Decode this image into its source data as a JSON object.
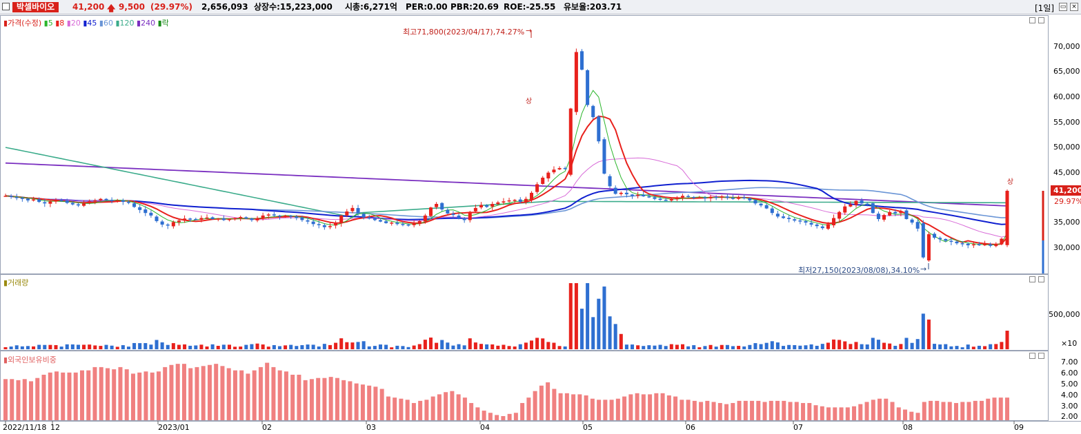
{
  "header": {
    "name": "박셀바이오",
    "price": "41,200",
    "change": "9,500",
    "change_pct": "(29.97%)",
    "volume": "2,656,093",
    "shares": "상장수:15,223,000",
    "mcap": "시총:6,271억",
    "per": "PER:0.00",
    "pbr": "PBR:20.69",
    "roe": "ROE:-25.55",
    "reserve": "유보율:203.71",
    "period": "[1일]"
  },
  "price_panel": {
    "legend_main": "가격(수정)",
    "legend_ma": [
      "5",
      "8",
      "20",
      "45",
      "60",
      "120",
      "240",
      "락"
    ],
    "high_label": "최고71,800(2023/04/17),74.27%",
    "low_label": "최저27,150(2023/08/08),34.10%",
    "up_mark": "상",
    "last_price": "41,200",
    "last_pct": "29.97%",
    "yticks": [
      "70,000",
      "65,000",
      "60,000",
      "55,000",
      "50,000",
      "45,000",
      "40,000",
      "35,000",
      "30,000"
    ]
  },
  "volume_panel": {
    "legend": "거래량",
    "yticks": [
      "500,000",
      "×10"
    ]
  },
  "foreign_panel": {
    "legend": "외국인보유비중",
    "yticks": [
      "7.00",
      "6.00",
      "5.00",
      "4.00",
      "3.00",
      "2.00"
    ]
  },
  "xaxis": {
    "labels": [
      "2022/11/18",
      "12",
      "2023/01",
      "02",
      "03",
      "04",
      "05",
      "06",
      "07",
      "08",
      "09"
    ]
  },
  "colors": {
    "up": "#e8211c",
    "down": "#2e6fd1",
    "ma5": "#2bb52b",
    "ma20": "#d86bd8",
    "ma45": "#1020d0",
    "ma60": "#6a95d6",
    "ma120": "#3aab8a",
    "ma240": "#7a2fc0",
    "foreign_bar": "#f08080"
  },
  "chart_data": {
    "type": "candlestick",
    "price_range": [
      26000,
      73000
    ],
    "start_date": "2022/11/18",
    "notable_points": [
      {
        "label": "high",
        "date": "2023/04/17",
        "value": 71800
      },
      {
        "label": "low",
        "date": "2023/08/08",
        "value": 27150
      },
      {
        "label": "last",
        "value": 41200
      }
    ],
    "closes": [
      40200,
      40000,
      39800,
      39600,
      39300,
      39500,
      39000,
      38700,
      39100,
      39400,
      39200,
      38800,
      38500,
      38300,
      38700,
      39100,
      39300,
      39600,
      39400,
      39200,
      39300,
      39000,
      38800,
      38000,
      37400,
      36800,
      36300,
      35200,
      34500,
      34300,
      35000,
      35300,
      35700,
      35600,
      35500,
      35800,
      35900,
      35600,
      35700,
      35400,
      35600,
      35800,
      36000,
      35700,
      35400,
      35800,
      36300,
      36500,
      36300,
      36100,
      36300,
      36100,
      35800,
      35400,
      35100,
      34600,
      34400,
      34000,
      34200,
      34800,
      36300,
      37100,
      37800,
      36800,
      35900,
      35700,
      35400,
      35100,
      34800,
      34900,
      34600,
      34500,
      34400,
      34700,
      35200,
      36300,
      37900,
      38600,
      37500,
      36700,
      36400,
      35800,
      35400,
      37000,
      37800,
      38400,
      38000,
      38600,
      38900,
      39100,
      39300,
      39400,
      39000,
      39600,
      40800,
      42500,
      43800,
      44800,
      45400,
      45700,
      45600,
      57500,
      68700,
      65200,
      58200,
      55800,
      51000,
      44600,
      42100,
      40600,
      40800,
      40500,
      40200,
      40400,
      40100,
      39900,
      39600,
      39400,
      39300,
      39600,
      39900,
      40200,
      40000,
      39800,
      39900,
      39700,
      40000,
      39900,
      40100,
      39800,
      39600,
      39900,
      39700,
      39300,
      38700,
      38300,
      37700,
      36800,
      36100,
      35800,
      35600,
      35300,
      35200,
      34900,
      34500,
      34200,
      33800,
      34600,
      35800,
      37000,
      38100,
      38500,
      39200,
      38700,
      38400,
      36800,
      35600,
      36400,
      37000,
      36700,
      37200,
      35600,
      34900,
      33700,
      28000,
      32600,
      31900,
      31600,
      31300,
      31100,
      30800,
      30700,
      30400,
      30600,
      30400,
      30600,
      30300,
      30700,
      31700,
      41200
    ],
    "foreign_pct": [
      5.4,
      5.4,
      5.3,
      5.4,
      5.2,
      5.5,
      5.8,
      6.0,
      6.1,
      6.0,
      6.0,
      6.0,
      6.2,
      6.2,
      6.5,
      6.5,
      6.4,
      6.3,
      6.5,
      6.3,
      5.9,
      6.0,
      6.1,
      6.0,
      6.1,
      6.5,
      6.7,
      6.8,
      6.8,
      6.4,
      6.5,
      6.6,
      6.7,
      6.8,
      6.6,
      6.4,
      6.2,
      6.2,
      5.9,
      6.2,
      6.5,
      6.9,
      6.5,
      6.2,
      6.1,
      5.8,
      5.8,
      5.3,
      5.4,
      5.5,
      5.5,
      5.6,
      5.5,
      5.3,
      5.2,
      5.0,
      4.9,
      4.8,
      4.7,
      4.5,
      3.8,
      3.7,
      3.6,
      3.5,
      3.2,
      3.4,
      3.5,
      3.8,
      4.0,
      4.2,
      4.3,
      4.0,
      3.7,
      3.2,
      2.8,
      2.5,
      2.3,
      2.1,
      2.0,
      2.2,
      2.3,
      3.2,
      3.7,
      4.3,
      4.8,
      5.1,
      4.5,
      4.1,
      4.1,
      4.0,
      4.0,
      3.9,
      3.6,
      3.5,
      3.5,
      3.5,
      3.6,
      3.8,
      4.0,
      4.1,
      4.0,
      4.0,
      4.1,
      4.1,
      3.9,
      3.8,
      3.5,
      3.5,
      3.4,
      3.3,
      3.4,
      3.3,
      3.2,
      3.1,
      3.2,
      3.4,
      3.4,
      3.4,
      3.4,
      3.3,
      3.4,
      3.4,
      3.4,
      3.3,
      3.3,
      3.2,
      3.2,
      3.0,
      2.9,
      2.8,
      2.8,
      2.8,
      2.8,
      2.9,
      3.1,
      3.3,
      3.5,
      3.6,
      3.6,
      3.3,
      2.8,
      2.6,
      2.4,
      2.3,
      3.3,
      3.4,
      3.4,
      3.3,
      3.3,
      3.2,
      3.3,
      3.3,
      3.4,
      3.4,
      3.6,
      3.7,
      3.7,
      3.7
    ]
  }
}
